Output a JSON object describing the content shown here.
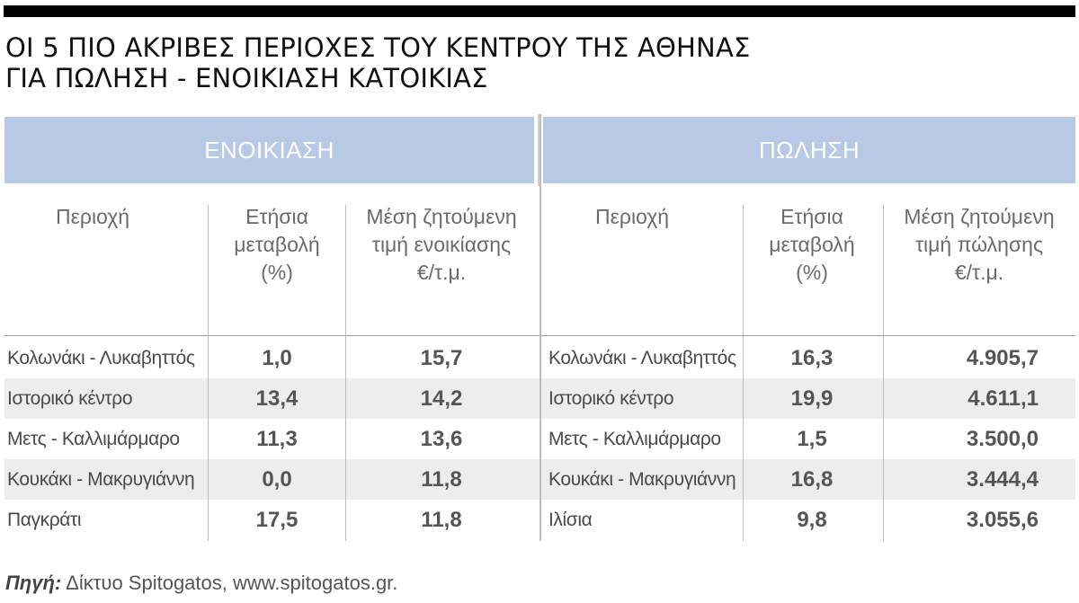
{
  "title": {
    "line1": "ΟΙ 5 ΠΙΟ ΑΚΡΙΒΕΣ ΠΕΡΙΟΧΕΣ ΤΟΥ ΚΕΝΤΡΟΥ ΤΗΣ ΑΘΗΝΑΣ",
    "line2": "ΓΙΑ ΠΩΛΗΣΗ - ΕΝΟΙΚΙΑΣΗ ΚΑΤΟΙΚΙΑΣ"
  },
  "colors": {
    "header_bg": "#b8c9e6",
    "row_shade": "#ededed",
    "top_bar": "#000000"
  },
  "rent": {
    "heading": "ΕΝΟΙΚΙΑΣΗ",
    "col_area": "Περιοχή",
    "col_change": [
      "Ετήσια",
      "μεταβολή",
      "(%)"
    ],
    "col_price": [
      "Μέση ζητούμενη",
      "τιμή ενοικίασης",
      "€/τ.μ."
    ],
    "rows": [
      {
        "area": "Κολωνάκι - Λυκαβηττός",
        "change": "1,0",
        "price": "15,7"
      },
      {
        "area": "Ιστορικό κέντρο",
        "change": "13,4",
        "price": "14,2"
      },
      {
        "area": "Μετς - Καλλιμάρμαρο",
        "change": "11,3",
        "price": "13,6"
      },
      {
        "area": "Κουκάκι - Μακρυγιάννη",
        "change": "0,0",
        "price": "11,8"
      },
      {
        "area": "Παγκράτι",
        "change": "17,5",
        "price": "11,8"
      }
    ]
  },
  "sale": {
    "heading": "ΠΩΛΗΣΗ",
    "col_area": "Περιοχή",
    "col_change": [
      "Ετήσια",
      "μεταβολή",
      "(%)"
    ],
    "col_price": [
      "Μέση ζητούμενη",
      "τιμή πώλησης",
      "€/τ.μ."
    ],
    "rows": [
      {
        "area": "Κολωνάκι - Λυκαβηττός",
        "change": "16,3",
        "price": "4.905,7"
      },
      {
        "area": "Ιστορικό κέντρο",
        "change": "19,9",
        "price": "4.611,1"
      },
      {
        "area": "Μετς - Καλλιμάρμαρο",
        "change": "1,5",
        "price": "3.500,0"
      },
      {
        "area": "Κουκάκι - Μακρυγιάννη",
        "change": "16,8",
        "price": "3.444,4"
      },
      {
        "area": "Ιλίσια",
        "change": "9,8",
        "price": "3.055,6"
      }
    ]
  },
  "source": {
    "label": "Πηγή:",
    "text": "Δίκτυο Spitogatos, www.spitogatos.gr."
  }
}
